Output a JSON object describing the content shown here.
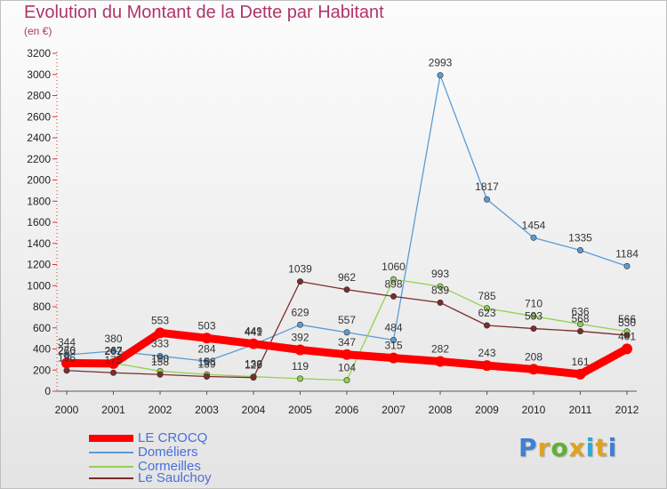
{
  "title": "Evolution du Montant de la Dette par Habitant",
  "subtitle": "(en €)",
  "logo": {
    "text": "Proxiti",
    "colors": [
      "#3f7fd6",
      "#e0a21b",
      "#5fb036",
      "#e0a21b",
      "#2fa9d9",
      "#e0a21b",
      "#3f7fd6"
    ]
  },
  "chart_data": {
    "type": "line",
    "title": "Evolution du Montant de la Dette par Habitant",
    "subtitle": "(en €)",
    "xlabel": "",
    "ylabel": "",
    "ylim": [
      0,
      3200
    ],
    "yticks": [
      0,
      200,
      400,
      600,
      800,
      1000,
      1200,
      1400,
      1600,
      1800,
      2000,
      2200,
      2400,
      2600,
      2800,
      3000,
      3200
    ],
    "categories": [
      "2000",
      "2001",
      "2002",
      "2003",
      "2004",
      "2005",
      "2006",
      "2007",
      "2008",
      "2009",
      "2010",
      "2011",
      "2012"
    ],
    "grid": false,
    "legend_position": "bottom-left",
    "series": [
      {
        "name": "LE CROCQ",
        "color": "#ff0000",
        "values": [
          266,
          262,
          553,
          503,
          449,
          392,
          347,
          315,
          282,
          243,
          208,
          161,
          401
        ]
      },
      {
        "name": "Doméliers",
        "color": "#5b9bd5",
        "values": [
          344,
          380,
          333,
          284,
          441,
          629,
          557,
          484,
          2993,
          1817,
          1454,
          1335,
          1184
        ]
      },
      {
        "name": "Cormeilles",
        "color": "#92d050",
        "values": [
          270,
          267,
          190,
          158,
          138,
          119,
          104,
          1060,
          993,
          785,
          710,
          636,
          566
        ]
      },
      {
        "name": "Le Saulchoy",
        "color": "#7b2c2c",
        "values": [
          196,
          175,
          158,
          139,
          129,
          1039,
          962,
          898,
          839,
          623,
          593,
          568,
          530
        ]
      }
    ]
  }
}
